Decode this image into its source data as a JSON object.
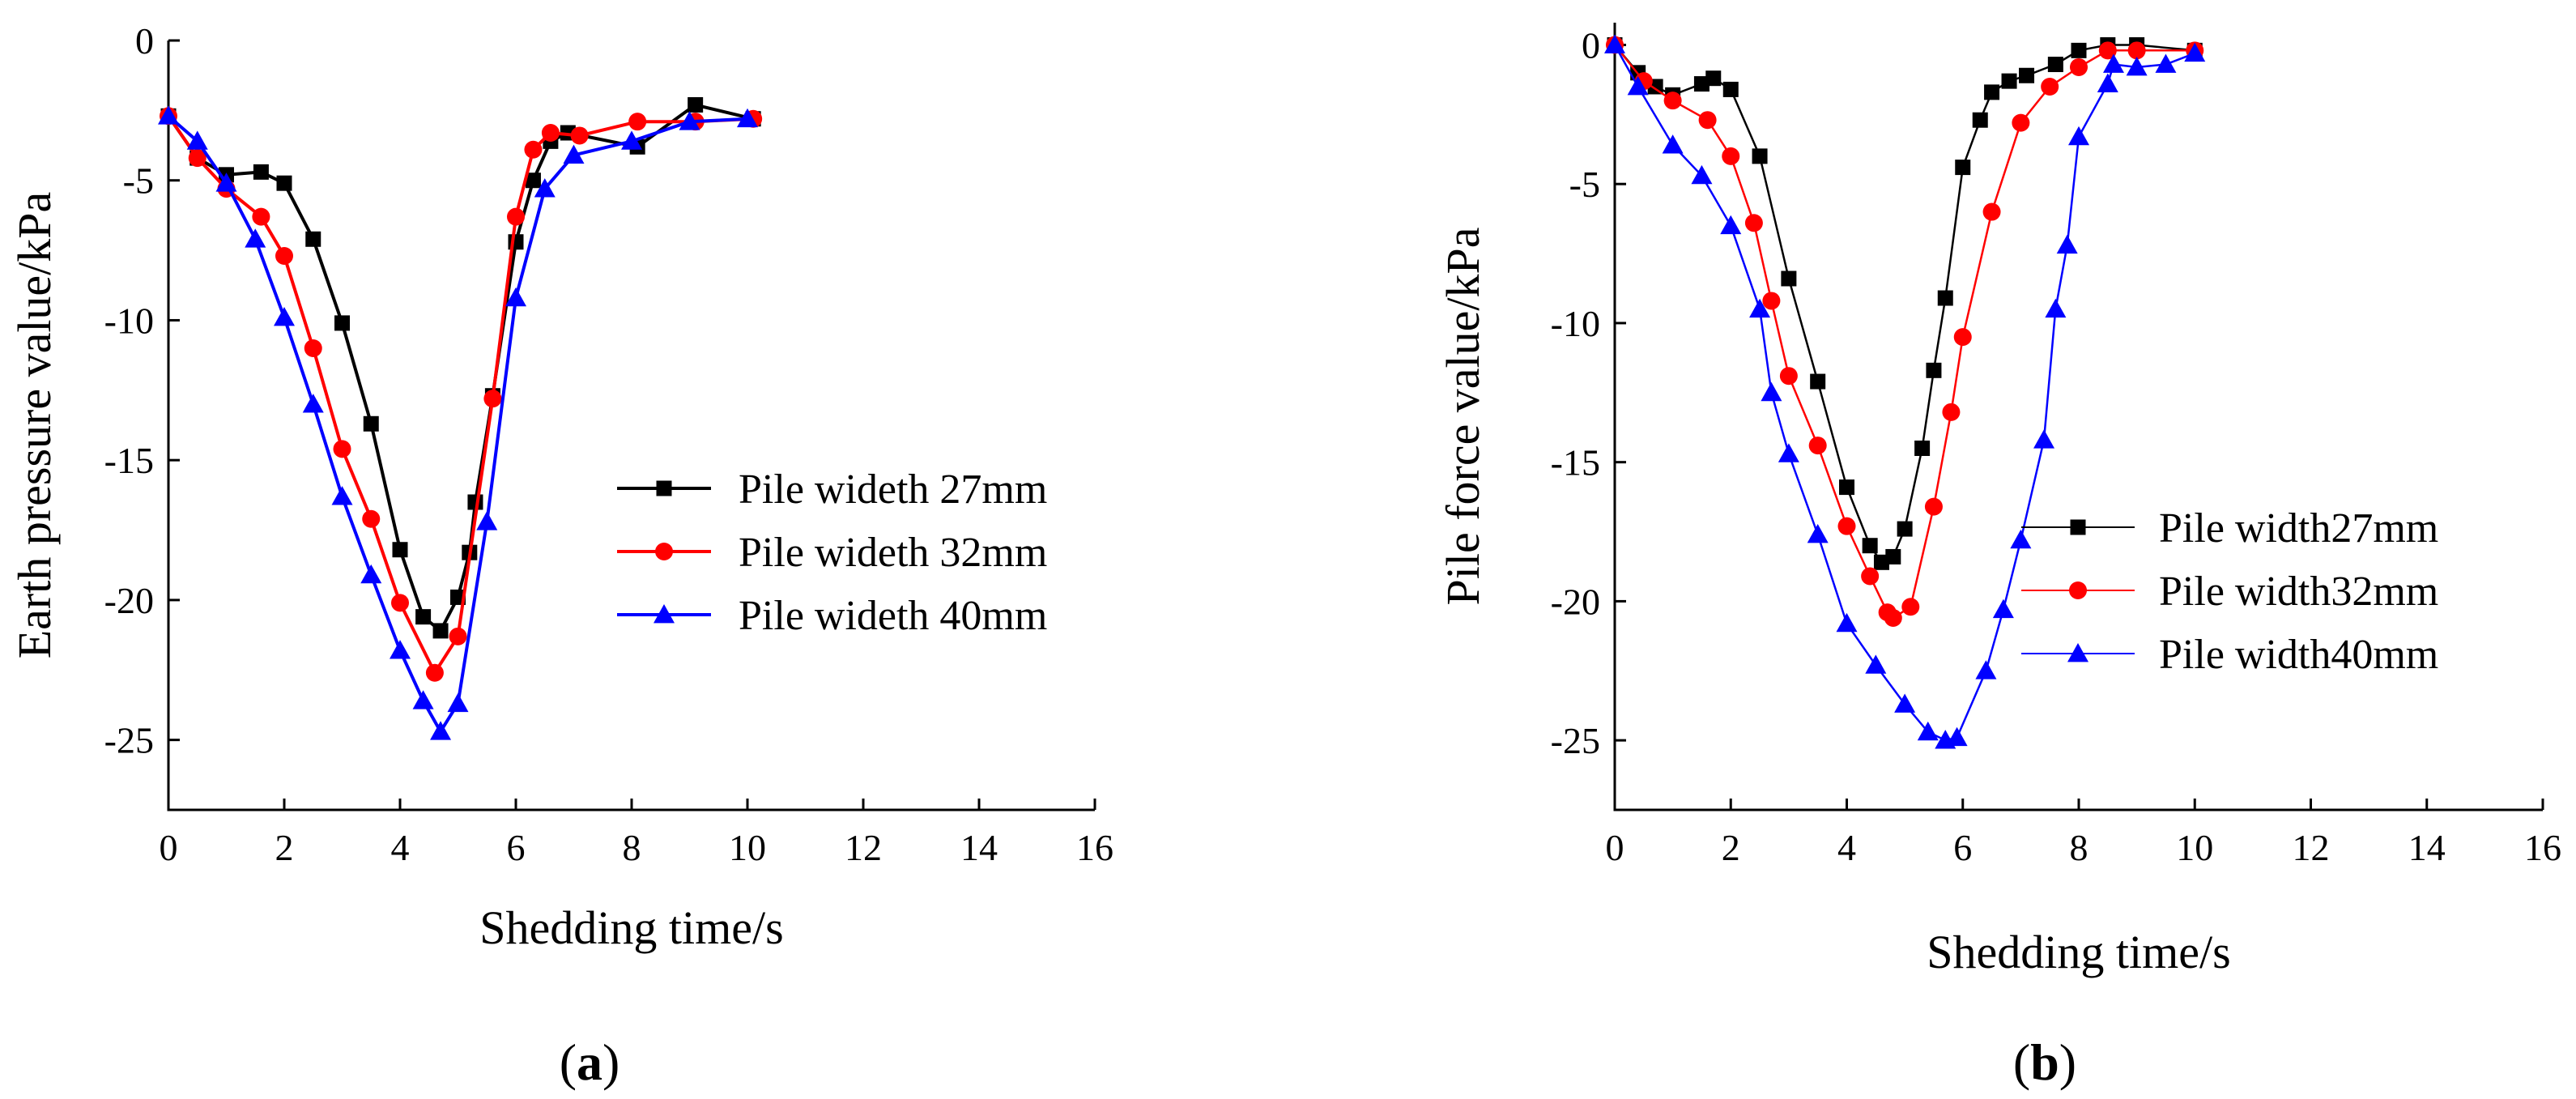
{
  "chart_data": [
    {
      "type": "line",
      "panel": "a",
      "caption_open": "(",
      "caption_letter": "a",
      "caption_close": ")",
      "title": "",
      "xlabel": "Shedding time/s",
      "ylabel": "Earth pressure value/kPa",
      "xlim": [
        0,
        16
      ],
      "ylim": [
        -27.5,
        0
      ],
      "xticks": [
        0,
        2,
        4,
        6,
        8,
        10,
        12,
        14,
        16
      ],
      "yticks": [
        0,
        -5,
        -10,
        -15,
        -20,
        -25
      ],
      "grid": false,
      "legend_position": "center-right",
      "series": [
        {
          "name": "Pile wideth 27mm",
          "color": "#000000",
          "marker": "square",
          "x": [
            0,
            0.5,
            1.0,
            1.6,
            2.0,
            2.5,
            3.0,
            3.5,
            4.0,
            4.4,
            4.7,
            5.0,
            5.2,
            5.3,
            5.6,
            6.0,
            6.3,
            6.6,
            6.9,
            8.1,
            9.1,
            10.1
          ],
          "y": [
            -2.7,
            -4.2,
            -4.8,
            -4.7,
            -5.1,
            -7.1,
            -10.1,
            -13.7,
            -18.2,
            -20.6,
            -21.1,
            -19.9,
            -18.3,
            -16.5,
            -12.7,
            -7.2,
            -5.0,
            -3.6,
            -3.3,
            -3.8,
            -2.3,
            -2.8
          ]
        },
        {
          "name": "Pile wideth 32mm",
          "color": "#ff0000",
          "marker": "circle",
          "x": [
            0,
            0.5,
            1.0,
            1.6,
            2.0,
            2.5,
            3.0,
            3.5,
            4.0,
            4.6,
            5.0,
            5.6,
            6.0,
            6.3,
            6.6,
            7.1,
            8.1,
            9.1,
            10.1
          ],
          "y": [
            -2.7,
            -4.2,
            -5.3,
            -6.3,
            -7.7,
            -11.0,
            -14.6,
            -17.1,
            -20.1,
            -22.6,
            -21.3,
            -12.8,
            -6.3,
            -3.9,
            -3.3,
            -3.4,
            -2.9,
            -2.9,
            -2.8
          ]
        },
        {
          "name": "Pile wideth 40mm",
          "color": "#0000ff",
          "marker": "triangle",
          "x": [
            0,
            0.5,
            1.0,
            1.5,
            2.0,
            2.5,
            3.0,
            3.5,
            4.0,
            4.4,
            4.7,
            5.0,
            5.5,
            6.0,
            6.5,
            7.0,
            8.0,
            9.0,
            10.0
          ],
          "y": [
            -2.7,
            -3.6,
            -5.1,
            -7.1,
            -9.9,
            -13.0,
            -16.3,
            -19.1,
            -21.8,
            -23.6,
            -24.7,
            -23.7,
            -17.2,
            -9.2,
            -5.3,
            -4.1,
            -3.6,
            -2.9,
            -2.8
          ]
        }
      ]
    },
    {
      "type": "line",
      "panel": "b",
      "caption_open": "(",
      "caption_letter": "b",
      "caption_close": ")",
      "title": "",
      "xlabel": "Shedding time/s",
      "ylabel": "Pile force value/kPa",
      "xlim": [
        0,
        16
      ],
      "ylim": [
        -27.5,
        0.8
      ],
      "xticks": [
        0,
        2,
        4,
        6,
        8,
        10,
        12,
        14,
        16
      ],
      "yticks": [
        0,
        -5,
        -10,
        -15,
        -20,
        -25
      ],
      "grid": false,
      "legend_position": "bottom-right",
      "series": [
        {
          "name": "Pile width27mm",
          "color": "#000000",
          "marker": "square",
          "x": [
            0,
            0.4,
            0.7,
            1.0,
            1.5,
            1.7,
            2.0,
            2.5,
            3.0,
            3.5,
            4.0,
            4.4,
            4.6,
            4.8,
            5.0,
            5.3,
            5.5,
            5.7,
            6.0,
            6.3,
            6.5,
            6.8,
            7.1,
            7.6,
            8.0,
            8.5,
            9.0,
            10.0
          ],
          "y": [
            0,
            -1.0,
            -1.5,
            -1.8,
            -1.4,
            -1.2,
            -1.6,
            -4.0,
            -8.4,
            -12.1,
            -15.9,
            -18.0,
            -18.6,
            -18.4,
            -17.4,
            -14.5,
            -11.7,
            -9.1,
            -4.4,
            -2.7,
            -1.7,
            -1.3,
            -1.1,
            -0.7,
            -0.2,
            0,
            0,
            -0.2
          ]
        },
        {
          "name": "Pile width32mm",
          "color": "#ff0000",
          "marker": "circle",
          "x": [
            0,
            0.5,
            1.0,
            1.6,
            2.0,
            2.4,
            2.7,
            3.0,
            3.5,
            4.0,
            4.4,
            4.7,
            4.8,
            5.1,
            5.5,
            5.8,
            6.0,
            6.5,
            7.0,
            7.5,
            8.0,
            8.5,
            9.0,
            10.0
          ],
          "y": [
            0,
            -1.3,
            -2.0,
            -2.7,
            -4.0,
            -6.4,
            -9.2,
            -11.9,
            -14.4,
            -17.3,
            -19.1,
            -20.4,
            -20.6,
            -20.2,
            -16.6,
            -13.2,
            -10.5,
            -6.0,
            -2.8,
            -1.5,
            -0.8,
            -0.2,
            -0.2,
            -0.2
          ]
        },
        {
          "name": "Pile width40mm",
          "color": "#0000ff",
          "marker": "triangle",
          "x": [
            0,
            0.4,
            1.0,
            1.5,
            2.0,
            2.5,
            2.7,
            3.0,
            3.5,
            4.0,
            4.5,
            5.0,
            5.4,
            5.7,
            5.9,
            6.4,
            6.7,
            7.0,
            7.4,
            7.6,
            7.8,
            8.0,
            8.5,
            8.6,
            9.0,
            9.5,
            10.0
          ],
          "y": [
            0,
            -1.5,
            -3.6,
            -4.7,
            -6.5,
            -9.5,
            -12.5,
            -14.7,
            -17.6,
            -20.8,
            -22.3,
            -23.7,
            -24.7,
            -25.0,
            -24.9,
            -22.5,
            -20.3,
            -17.8,
            -14.2,
            -9.5,
            -7.2,
            -3.3,
            -1.4,
            -0.7,
            -0.8,
            -0.7,
            -0.3
          ]
        }
      ]
    }
  ]
}
